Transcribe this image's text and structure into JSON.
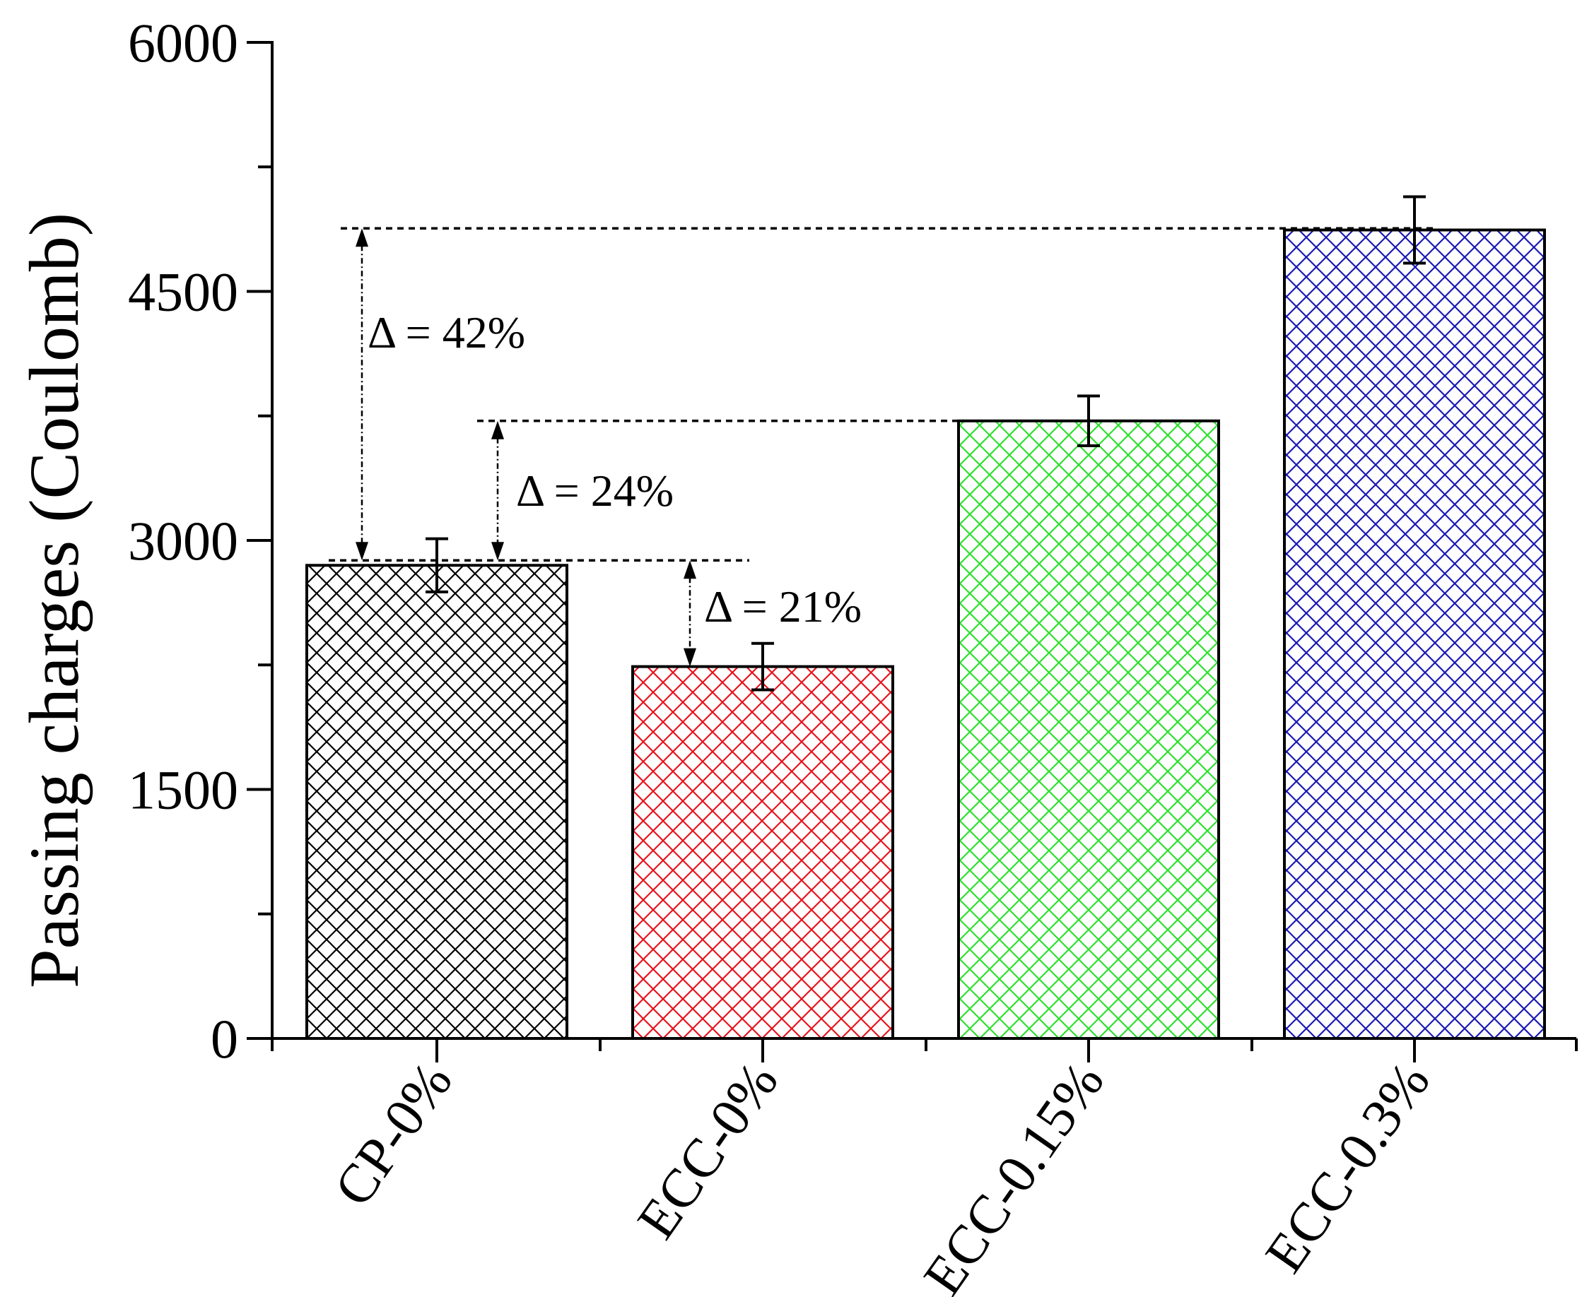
{
  "chart_data": {
    "type": "bar",
    "title": "",
    "xlabel": "",
    "ylabel": "Passing charges (Coulomb)",
    "ylim": [
      0,
      6000
    ],
    "yticks": [
      0,
      1500,
      3000,
      4500,
      6000
    ],
    "y_minor_step": 750,
    "grid": false,
    "legend": "none",
    "categories": [
      "CP-0%",
      "ECC-0%",
      "ECC-0.15%",
      "ECC-0.3%"
    ],
    "values": [
      2850,
      2240,
      3720,
      4870
    ],
    "errors": [
      160,
      140,
      150,
      200
    ],
    "colors": [
      "#000000",
      "#e8141e",
      "#2ee02e",
      "#1a1ab4"
    ],
    "annotations": [
      {
        "label": "Δ = 42%",
        "from": 2880,
        "to": 4880,
        "category": 0
      },
      {
        "label": "Δ = 24%",
        "from": 2880,
        "to": 3720,
        "category": 0
      },
      {
        "label": "Δ = 21%",
        "from": 2880,
        "to": 2240,
        "category": 1
      }
    ]
  }
}
